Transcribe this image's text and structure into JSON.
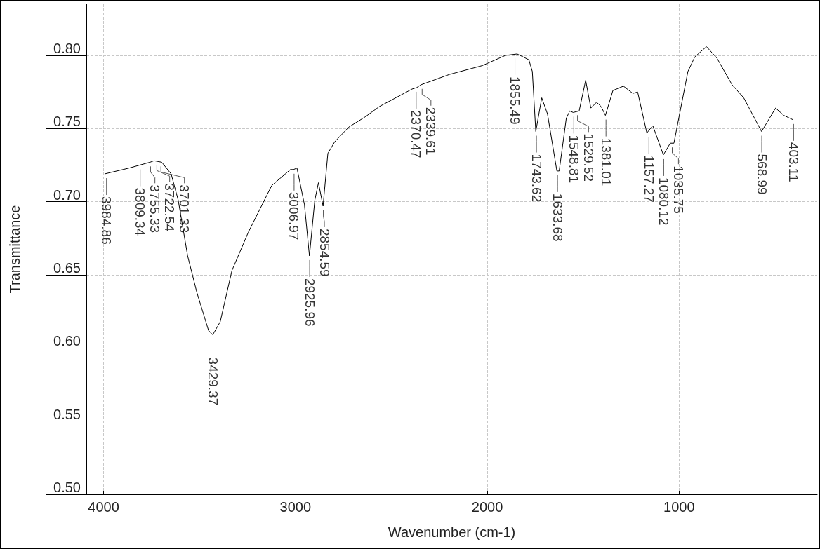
{
  "chart_data": {
    "type": "line",
    "xlabel": "Wavenumber (cm-1)",
    "ylabel": "Transmittance",
    "xlim": [
      4090,
      280
    ],
    "xticks": [
      4000,
      3000,
      2000,
      1000
    ],
    "ylim": [
      0.5,
      0.835
    ],
    "yticks": [
      {
        "value": 0.5,
        "label": "0.50"
      },
      {
        "value": 0.55,
        "label": "0.55"
      },
      {
        "value": 0.6,
        "label": "0.60"
      },
      {
        "value": 0.65,
        "label": "0.65"
      },
      {
        "value": 0.7,
        "label": "0.70"
      },
      {
        "value": 0.75,
        "label": "0.75"
      },
      {
        "value": 0.8,
        "label": "0.80"
      }
    ],
    "grid": true,
    "marker": "none",
    "line_style": "solid",
    "series": [
      {
        "color": "#000000",
        "x": [
          3995,
          3867,
          3758,
          3737,
          3697,
          3648,
          3611,
          3562,
          3514,
          3453,
          3431,
          3392,
          3331,
          3246,
          3124,
          3026,
          3010,
          2992,
          2953,
          2927,
          2899,
          2880,
          2856,
          2831,
          2795,
          2722,
          2636,
          2563,
          2392,
          2368,
          2344,
          2197,
          2027,
          1905,
          1844,
          1783,
          1765,
          1747,
          1716,
          1686,
          1637,
          1625,
          1588,
          1570,
          1552,
          1521,
          1487,
          1460,
          1430,
          1406,
          1384,
          1345,
          1290,
          1241,
          1216,
          1168,
          1137,
          1082,
          1046,
          1027,
          954,
          918,
          857,
          802,
          724,
          663,
          570,
          497,
          454,
          406
        ],
        "values": [
          0.719,
          0.723,
          0.727,
          0.728,
          0.727,
          0.719,
          0.701,
          0.663,
          0.638,
          0.612,
          0.609,
          0.618,
          0.653,
          0.679,
          0.711,
          0.722,
          0.722,
          0.723,
          0.698,
          0.663,
          0.701,
          0.713,
          0.697,
          0.733,
          0.741,
          0.751,
          0.758,
          0.765,
          0.777,
          0.778,
          0.78,
          0.787,
          0.793,
          0.8,
          0.801,
          0.797,
          0.789,
          0.748,
          0.771,
          0.76,
          0.721,
          0.721,
          0.757,
          0.762,
          0.761,
          0.762,
          0.783,
          0.764,
          0.768,
          0.765,
          0.759,
          0.776,
          0.779,
          0.774,
          0.775,
          0.747,
          0.752,
          0.732,
          0.74,
          0.74,
          0.789,
          0.799,
          0.806,
          0.798,
          0.78,
          0.771,
          0.748,
          0.764,
          0.759,
          0.756
        ]
      }
    ],
    "annotations": [
      {
        "text": "3984.86",
        "x": 3984.86,
        "y": 0.719
      },
      {
        "text": "3809.34",
        "x": 3809.34,
        "y": 0.725
      },
      {
        "text": "3755.33",
        "x": 3755.33,
        "y": 0.727
      },
      {
        "text": "3722.54",
        "x": 3722.54,
        "y": 0.728
      },
      {
        "text": "3701.33",
        "x": 3701.33,
        "y": 0.727
      },
      {
        "text": "3429.37",
        "x": 3429.37,
        "y": 0.609
      },
      {
        "text": "3006.97",
        "x": 3006.97,
        "y": 0.722
      },
      {
        "text": "2925.96",
        "x": 2925.96,
        "y": 0.663
      },
      {
        "text": "2854.59",
        "x": 2854.59,
        "y": 0.697
      },
      {
        "text": "2370.47",
        "x": 2370.47,
        "y": 0.778
      },
      {
        "text": "2339.61",
        "x": 2339.61,
        "y": 0.78
      },
      {
        "text": "1855.49",
        "x": 1855.49,
        "y": 0.801
      },
      {
        "text": "1743.62",
        "x": 1743.62,
        "y": 0.748
      },
      {
        "text": "1633.68",
        "x": 1633.68,
        "y": 0.721
      },
      {
        "text": "1548.81",
        "x": 1548.81,
        "y": 0.761
      },
      {
        "text": "1529.52",
        "x": 1529.52,
        "y": 0.762
      },
      {
        "text": "1381.01",
        "x": 1381.01,
        "y": 0.759
      },
      {
        "text": "1157.27",
        "x": 1157.27,
        "y": 0.747
      },
      {
        "text": "1080.12",
        "x": 1080.12,
        "y": 0.732
      },
      {
        "text": "1035.75",
        "x": 1035.75,
        "y": 0.74
      },
      {
        "text": "568.99",
        "x": 568.99,
        "y": 0.748
      },
      {
        "text": "403.11",
        "x": 403.11,
        "y": 0.756
      }
    ]
  }
}
